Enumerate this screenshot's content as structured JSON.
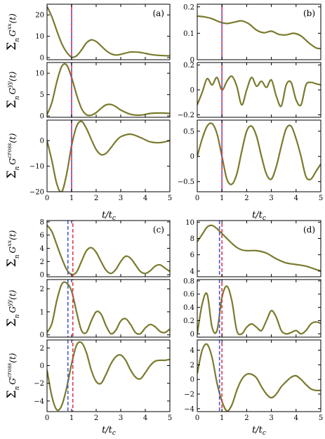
{
  "figure": {
    "colors": {
      "curve": "#7a7a2e",
      "blue_line": "#4a56d8",
      "red_line": "#e0345c",
      "frame": "#000000"
    },
    "xlabel": "t/t",
    "xlabel_sub": "c",
    "xticks": [
      0,
      1,
      2,
      3,
      4,
      5
    ],
    "ylabel_sum": "Σ",
    "ylabel_n": "n",
    "ylabel_G": "G",
    "ylabel_args": "(t)",
    "components": [
      "xx",
      "yy",
      "cross"
    ]
  },
  "chart_data": [
    {
      "type": "line",
      "panel": "(a)",
      "component": "xx",
      "xlim": [
        0,
        5
      ],
      "ylim": [
        -1,
        25
      ],
      "yticks": [
        0,
        10,
        20
      ],
      "vlines": {
        "blue": 1.0,
        "red": 1.0
      },
      "series": [
        {
          "x": [
            0,
            0.2,
            0.4,
            0.6,
            0.8,
            1.0,
            1.2,
            1.4,
            1.6,
            1.8,
            2.0,
            2.2,
            2.4,
            2.6,
            2.8,
            3.0,
            3.4,
            3.8,
            4.2,
            4.6,
            5.0
          ],
          "y": [
            24,
            19,
            12.5,
            6.5,
            2.5,
            0.2,
            0.8,
            3.5,
            6.8,
            8.3,
            7.5,
            5.5,
            3.3,
            1.8,
            1.2,
            1.5,
            2.6,
            2.4,
            1.5,
            1.0,
            0.8
          ]
        }
      ]
    },
    {
      "type": "line",
      "panel": "(b)",
      "component": "xx",
      "xlim": [
        0,
        5
      ],
      "ylim": [
        0,
        0.21
      ],
      "yticks": [
        0,
        0.1,
        0.2
      ],
      "vlines": {
        "blue": 1.0,
        "red": 1.0
      },
      "series": [
        {
          "x": [
            0,
            0.3,
            0.6,
            0.9,
            1.2,
            1.5,
            1.8,
            2.1,
            2.4,
            2.7,
            3.0,
            3.3,
            3.6,
            3.9,
            4.2,
            4.5,
            4.8,
            5.0
          ],
          "y": [
            0.165,
            0.162,
            0.155,
            0.143,
            0.137,
            0.142,
            0.147,
            0.135,
            0.112,
            0.102,
            0.108,
            0.096,
            0.094,
            0.1,
            0.09,
            0.065,
            0.045,
            0.042
          ]
        }
      ]
    },
    {
      "type": "line",
      "panel": "(a)",
      "component": "yy",
      "xlim": [
        0,
        5
      ],
      "ylim": [
        -0.3,
        12.5
      ],
      "yticks": [
        0,
        5,
        10
      ],
      "vlines": {
        "blue": 1.0,
        "red": 1.0
      },
      "series": [
        {
          "x": [
            0,
            0.2,
            0.4,
            0.6,
            0.8,
            1.0,
            1.2,
            1.4,
            1.6,
            1.8,
            2.0,
            2.2,
            2.4,
            2.6,
            2.8,
            3.0,
            3.4,
            3.8,
            4.2,
            4.6,
            5.0
          ],
          "y": [
            0.3,
            3.2,
            8.0,
            11.6,
            11.9,
            9.0,
            5.0,
            1.8,
            0.3,
            0.2,
            0.8,
            1.8,
            2.6,
            2.7,
            2.2,
            1.4,
            0.4,
            0.2,
            0.6,
            0.7,
            0.6
          ]
        }
      ]
    },
    {
      "type": "line",
      "panel": "(b)",
      "component": "yy",
      "xlim": [
        0,
        5
      ],
      "ylim": [
        -0.22,
        0.22
      ],
      "yticks": [
        -0.2,
        0,
        0.2
      ],
      "vlines": {
        "blue": 1.0,
        "red": 1.0
      },
      "series": [
        {
          "x": [
            0,
            0.2,
            0.4,
            0.6,
            0.8,
            1.0,
            1.2,
            1.4,
            1.6,
            1.8,
            2.0,
            2.2,
            2.4,
            2.6,
            2.8,
            3.0,
            3.2,
            3.4,
            3.6,
            3.8,
            4.0,
            4.2,
            4.4,
            4.6,
            4.8,
            5.0
          ],
          "y": [
            -0.12,
            -0.02,
            0.09,
            0.04,
            0.1,
            0.0,
            0.07,
            0.11,
            0.03,
            -0.12,
            0.0,
            0.1,
            0.03,
            0.07,
            0.02,
            0.08,
            -0.05,
            -0.13,
            0.04,
            0.06,
            -0.08,
            -0.12,
            0.04,
            0.06,
            0.05,
            0.04
          ]
        }
      ]
    },
    {
      "type": "line",
      "panel": "(a)",
      "component": "cross",
      "xlim": [
        0,
        5
      ],
      "ylim": [
        -20,
        8
      ],
      "yticks": [
        -20,
        -10,
        0
      ],
      "vlines": {
        "blue": 1.0,
        "red": 1.0
      },
      "series": [
        {
          "x": [
            0,
            0.2,
            0.4,
            0.6,
            0.8,
            1.0,
            1.2,
            1.4,
            1.6,
            1.8,
            2.0,
            2.2,
            2.4,
            2.6,
            2.8,
            3.0,
            3.4,
            3.8,
            4.2,
            4.6,
            5.0
          ],
          "y": [
            0,
            -8,
            -17,
            -20,
            -13,
            -2,
            5.5,
            7.5,
            4.8,
            0.5,
            -3.5,
            -5.5,
            -5.0,
            -2.8,
            -0.3,
            1.5,
            2.5,
            1.2,
            -0.5,
            -0.8,
            0
          ]
        }
      ]
    },
    {
      "type": "line",
      "panel": "(b)",
      "component": "cross",
      "xlim": [
        0,
        5
      ],
      "ylim": [
        -0.7,
        0.72
      ],
      "yticks": [
        -0.5,
        0,
        0.5
      ],
      "vlines": {
        "blue": 1.0,
        "red": 1.0
      },
      "series": [
        {
          "x": [
            0,
            0.2,
            0.4,
            0.6,
            0.8,
            1.0,
            1.2,
            1.4,
            1.6,
            1.8,
            2.0,
            2.2,
            2.4,
            2.6,
            2.8,
            3.0,
            3.2,
            3.4,
            3.6,
            3.8,
            4.0,
            4.2,
            4.4,
            4.6,
            4.8,
            5.0
          ],
          "y": [
            0.0,
            0.35,
            0.6,
            0.65,
            0.45,
            0.0,
            -0.45,
            -0.55,
            -0.35,
            0.1,
            0.5,
            0.6,
            0.4,
            0.0,
            -0.35,
            -0.45,
            -0.2,
            0.2,
            0.55,
            0.6,
            0.35,
            0.0,
            -0.4,
            -0.45,
            -0.3,
            -0.15
          ]
        }
      ]
    },
    {
      "type": "line",
      "panel": "(c)",
      "component": "xx",
      "xlim": [
        0,
        5
      ],
      "ylim": [
        -0.3,
        8.2
      ],
      "yticks": [
        0,
        2,
        4,
        6,
        8
      ],
      "vlines": {
        "blue": 0.85,
        "red": 1.05
      },
      "series": [
        {
          "x": [
            0,
            0.2,
            0.4,
            0.6,
            0.8,
            1.0,
            1.2,
            1.4,
            1.6,
            1.8,
            2.0,
            2.2,
            2.4,
            2.6,
            2.8,
            3.0,
            3.2,
            3.4,
            3.6,
            3.8,
            4.0,
            4.2,
            4.4,
            4.6,
            4.8,
            5.0
          ],
          "y": [
            7.5,
            6.5,
            4.5,
            2.5,
            0.8,
            0.05,
            0.4,
            2.0,
            3.6,
            4.1,
            3.4,
            2.0,
            0.7,
            0.2,
            0.8,
            2.0,
            2.8,
            2.5,
            1.5,
            0.5,
            0.2,
            0.6,
            1.3,
            1.5,
            1.0,
            0.5
          ]
        }
      ]
    },
    {
      "type": "line",
      "panel": "(d)",
      "component": "xx",
      "xlim": [
        0,
        5
      ],
      "ylim": [
        3.3,
        10.2
      ],
      "yticks": [
        4,
        6,
        8,
        10
      ],
      "vlines": {
        "blue": 0.9,
        "red": 1.0
      },
      "series": [
        {
          "x": [
            0,
            0.2,
            0.4,
            0.6,
            0.8,
            1.0,
            1.2,
            1.4,
            1.6,
            1.8,
            2.0,
            2.4,
            2.8,
            3.2,
            3.6,
            4.0,
            4.4,
            4.8,
            5.0
          ],
          "y": [
            7.6,
            8.5,
            9.4,
            9.6,
            9.2,
            8.6,
            8.0,
            7.4,
            6.9,
            6.6,
            6.5,
            6.5,
            6.2,
            5.5,
            5.0,
            4.8,
            4.6,
            4.2,
            4.0
          ]
        }
      ]
    },
    {
      "type": "line",
      "panel": "(c)",
      "component": "yy",
      "xlim": [
        0,
        5
      ],
      "ylim": [
        -0.1,
        2.4
      ],
      "yticks": [
        0,
        1,
        2
      ],
      "vlines": {
        "blue": 0.85,
        "red": 1.05
      },
      "series": [
        {
          "x": [
            0,
            0.2,
            0.4,
            0.6,
            0.8,
            1.0,
            1.2,
            1.4,
            1.6,
            1.8,
            2.0,
            2.2,
            2.4,
            2.6,
            2.8,
            3.0,
            3.2,
            3.4,
            3.6,
            3.8,
            4.0,
            4.2,
            4.4,
            4.6,
            4.8,
            5.0
          ],
          "y": [
            0.1,
            0.5,
            1.5,
            2.2,
            2.25,
            1.9,
            1.0,
            0.2,
            0.1,
            0.6,
            1.0,
            0.9,
            0.4,
            0.05,
            0.2,
            0.6,
            0.7,
            0.45,
            0.1,
            0.05,
            0.3,
            0.45,
            0.35,
            0.15,
            0.1,
            0.25
          ]
        }
      ]
    },
    {
      "type": "line",
      "panel": "(d)",
      "component": "yy",
      "xlim": [
        0,
        5
      ],
      "ylim": [
        -0.05,
        0.82
      ],
      "yticks": [
        0,
        0.2,
        0.4,
        0.6,
        0.8
      ],
      "vlines": {
        "blue": 0.9,
        "red": 1.0
      },
      "series": [
        {
          "x": [
            0,
            0.2,
            0.4,
            0.6,
            0.8,
            1.0,
            1.2,
            1.4,
            1.6,
            1.8,
            2.0,
            2.2,
            2.4,
            2.6,
            2.8,
            3.0,
            3.2,
            3.4,
            3.6,
            3.8,
            4.0,
            4.2,
            4.4,
            4.6,
            4.8,
            5.0
          ],
          "y": [
            0.0,
            0.45,
            0.6,
            0.1,
            0.05,
            0.55,
            0.72,
            0.5,
            0.05,
            0.0,
            0.1,
            0.15,
            0.1,
            0.05,
            0.2,
            0.35,
            0.25,
            0.05,
            0.0,
            0.02,
            0.05,
            0.0,
            0.05,
            0.15,
            0.18,
            0.16
          ]
        }
      ]
    },
    {
      "type": "line",
      "panel": "(c)",
      "component": "cross",
      "xlim": [
        0,
        5
      ],
      "ylim": [
        -5.2,
        2.9
      ],
      "yticks": [
        -4,
        -2,
        0,
        2
      ],
      "vlines": {
        "blue": 0.85,
        "red": 1.05
      },
      "series": [
        {
          "x": [
            0,
            0.2,
            0.4,
            0.6,
            0.8,
            1.0,
            1.2,
            1.4,
            1.6,
            1.8,
            2.0,
            2.2,
            2.4,
            2.6,
            2.8,
            3.0,
            3.2,
            3.4,
            3.6,
            3.8,
            4.0,
            4.2,
            4.4,
            4.6,
            4.8,
            5.0
          ],
          "y": [
            -0.5,
            -3.5,
            -5.0,
            -4.5,
            -2.5,
            0.2,
            2.3,
            2.6,
            1.5,
            -0.5,
            -1.8,
            -2.0,
            -1.0,
            0.2,
            1.0,
            1.2,
            0.6,
            -0.5,
            -1.3,
            -1.5,
            -0.8,
            0.0,
            0.5,
            0.6,
            0.6,
            0.7
          ]
        }
      ]
    },
    {
      "type": "line",
      "panel": "(d)",
      "component": "cross",
      "xlim": [
        0,
        5
      ],
      "ylim": [
        -4.4,
        5.4
      ],
      "yticks": [
        -4,
        -2,
        0,
        2,
        4
      ],
      "vlines": {
        "blue": 0.9,
        "red": 1.0
      },
      "series": [
        {
          "x": [
            0,
            0.2,
            0.4,
            0.6,
            0.8,
            1.0,
            1.2,
            1.4,
            1.6,
            1.8,
            2.0,
            2.2,
            2.4,
            2.6,
            2.8,
            3.0,
            3.2,
            3.4,
            3.6,
            3.8,
            4.0,
            4.2,
            4.4,
            4.6,
            4.8,
            5.0
          ],
          "y": [
            0.8,
            4.0,
            4.8,
            3.0,
            -0.5,
            -3.0,
            -4.3,
            -3.5,
            -1.5,
            0.0,
            0.7,
            0.7,
            0.2,
            -1.0,
            -2.0,
            -2.5,
            -2.0,
            -1.0,
            -0.3,
            0.3,
            0.5,
            0.0,
            -0.7,
            -1.3,
            -1.5,
            -1.5
          ]
        }
      ]
    }
  ]
}
